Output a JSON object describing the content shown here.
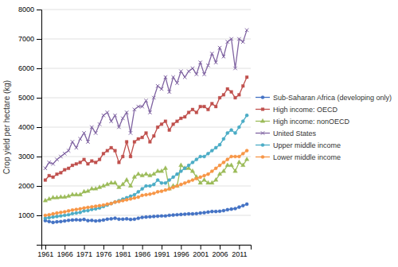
{
  "chart_data": {
    "type": "line",
    "ylabel": "Crop yield per hectare (kg)",
    "x": [
      1961,
      1962,
      1963,
      1964,
      1965,
      1966,
      1967,
      1968,
      1969,
      1970,
      1971,
      1972,
      1973,
      1974,
      1975,
      1976,
      1977,
      1978,
      1979,
      1980,
      1981,
      1982,
      1983,
      1984,
      1985,
      1986,
      1987,
      1988,
      1989,
      1990,
      1991,
      1992,
      1993,
      1994,
      1995,
      1996,
      1997,
      1998,
      1999,
      2000,
      2001,
      2002,
      2003,
      2004,
      2005,
      2006,
      2007,
      2008,
      2009,
      2010,
      2011,
      2012,
      2013
    ],
    "series": [
      {
        "name": "Sub-Saharan Africa (developing only)",
        "color": "#4472C4",
        "marker": "circle",
        "values": [
          820,
          790,
          760,
          780,
          790,
          810,
          830,
          840,
          850,
          840,
          860,
          820,
          830,
          810,
          820,
          840,
          870,
          880,
          900,
          870,
          870,
          880,
          860,
          870,
          900,
          930,
          940,
          950,
          960,
          970,
          980,
          980,
          1000,
          1010,
          1020,
          1030,
          1040,
          1050,
          1050,
          1060,
          1080,
          1090,
          1110,
          1130,
          1130,
          1140,
          1160,
          1190,
          1210,
          1230,
          1280,
          1330,
          1380
        ]
      },
      {
        "name": "High income: OECD",
        "color": "#C0504D",
        "marker": "square",
        "values": [
          2200,
          2350,
          2300,
          2400,
          2450,
          2550,
          2600,
          2700,
          2750,
          2800,
          2900,
          2750,
          2850,
          2800,
          2900,
          3100,
          3200,
          3300,
          3200,
          2800,
          3000,
          3500,
          3000,
          3500,
          3600,
          3650,
          3800,
          3500,
          3700,
          4000,
          4100,
          4200,
          3900,
          4100,
          4200,
          4300,
          4350,
          4500,
          4600,
          4500,
          4700,
          4700,
          4600,
          4800,
          4700,
          5000,
          5100,
          5300,
          5200,
          5000,
          5100,
          5400,
          5700
        ]
      },
      {
        "name": "High income: nonOECD",
        "color": "#9BBB59",
        "marker": "triangle",
        "values": [
          1500,
          1550,
          1600,
          1600,
          1620,
          1620,
          1650,
          1700,
          1700,
          1700,
          1800,
          1820,
          1900,
          1900,
          1950,
          2000,
          2050,
          2100,
          2100,
          1950,
          2050,
          2200,
          2000,
          2300,
          2400,
          2350,
          2400,
          2350,
          2400,
          2500,
          2500,
          2600,
          1900,
          2000,
          2000,
          2700,
          2600,
          2600,
          2500,
          2300,
          2100,
          2200,
          2100,
          2100,
          2200,
          2400,
          2500,
          2700,
          2700,
          2500,
          2800,
          2700,
          2900
        ]
      },
      {
        "name": "United States",
        "color": "#8064A2",
        "marker": "x",
        "values": [
          2600,
          2800,
          2750,
          2900,
          3000,
          3100,
          3200,
          3500,
          3300,
          3600,
          3800,
          3500,
          4000,
          3800,
          4100,
          4400,
          4500,
          4200,
          4400,
          4000,
          4300,
          4500,
          3800,
          4600,
          4700,
          4700,
          4900,
          4500,
          5000,
          5400,
          5300,
          5700,
          5200,
          5700,
          5500,
          5900,
          5700,
          5900,
          6000,
          5800,
          6200,
          5800,
          6100,
          6500,
          6200,
          6700,
          6400,
          6900,
          7000,
          6000,
          7000,
          6900,
          7300
        ]
      },
      {
        "name": "Upper middle income",
        "color": "#4BACC6",
        "marker": "circle",
        "values": [
          900,
          920,
          940,
          960,
          980,
          1000,
          1020,
          1060,
          1080,
          1100,
          1150,
          1160,
          1200,
          1220,
          1250,
          1300,
          1350,
          1400,
          1450,
          1500,
          1550,
          1600,
          1650,
          1700,
          1800,
          1900,
          2000,
          2000,
          2050,
          2200,
          2100,
          2100,
          2200,
          2300,
          2400,
          2500,
          2600,
          2700,
          2800,
          2900,
          3000,
          3000,
          3100,
          3200,
          3300,
          3400,
          3600,
          3800,
          3900,
          3800,
          4000,
          4200,
          4400
        ]
      },
      {
        "name": "Lower middle income",
        "color": "#F79646",
        "marker": "circle",
        "values": [
          1000,
          1020,
          1050,
          1080,
          1100,
          1120,
          1150,
          1180,
          1200,
          1220,
          1250,
          1270,
          1290,
          1310,
          1330,
          1350,
          1380,
          1400,
          1450,
          1470,
          1500,
          1530,
          1560,
          1590,
          1620,
          1680,
          1700,
          1720,
          1750,
          1800,
          1820,
          1860,
          1900,
          1950,
          2000,
          2050,
          2100,
          2150,
          2200,
          2250,
          2300,
          2350,
          2400,
          2500,
          2600,
          2700,
          2800,
          2900,
          3000,
          3000,
          3000,
          3100,
          3200
        ]
      }
    ],
    "xlim": [
      1960,
      2014
    ],
    "xticks": [
      1961,
      1966,
      1971,
      1976,
      1981,
      1986,
      1991,
      1996,
      2001,
      2006,
      2011
    ],
    "ylim": [
      0,
      8000
    ],
    "yticks": [
      {
        "value": 0,
        "label": null
      },
      1000,
      2000,
      3000,
      4000,
      5000,
      6000,
      7000,
      8000
    ],
    "grid": true,
    "legend": "right"
  }
}
